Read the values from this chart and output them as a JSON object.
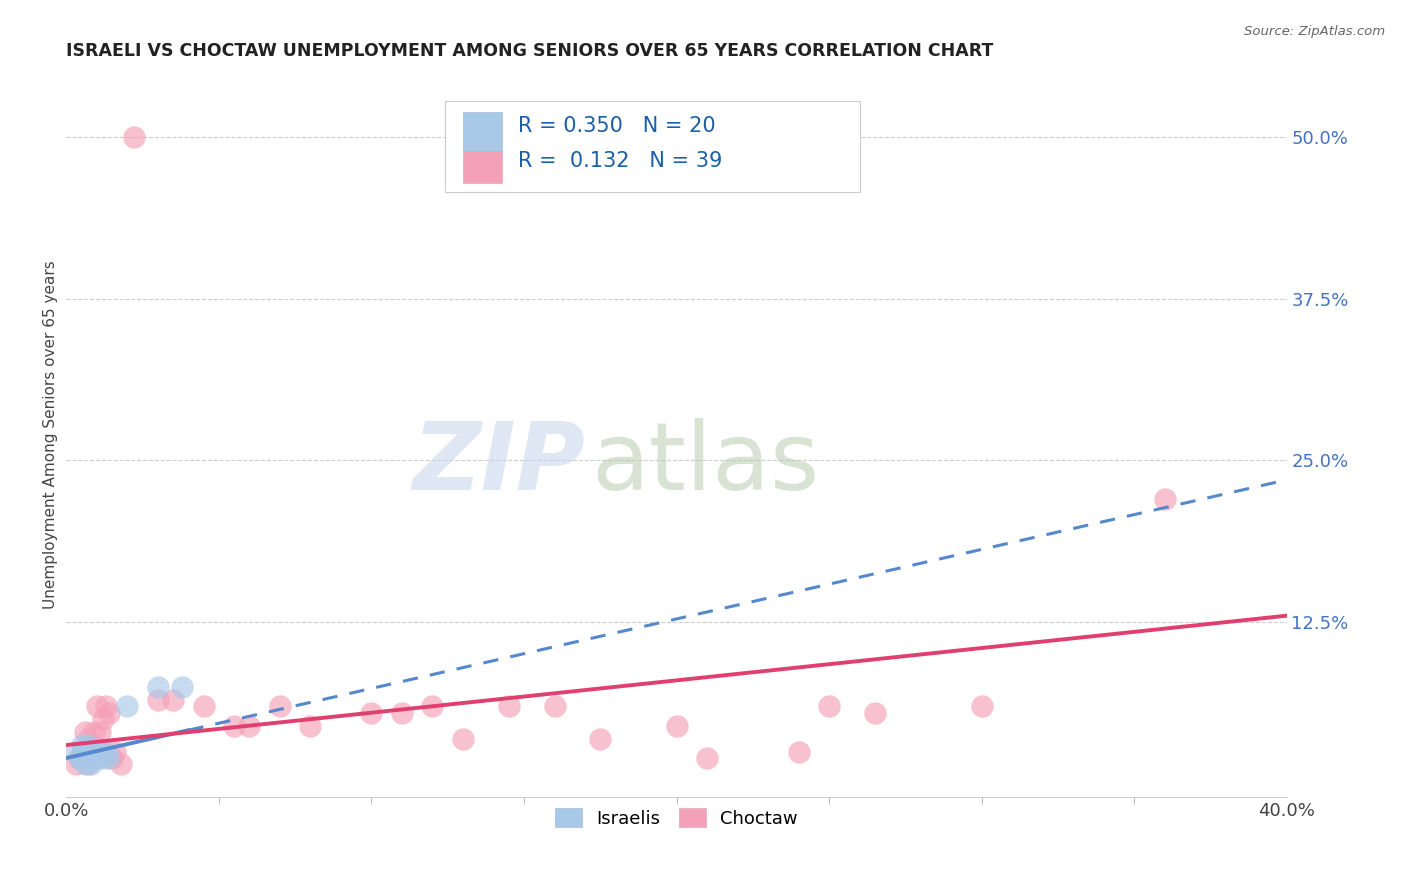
{
  "title": "ISRAELI VS CHOCTAW UNEMPLOYMENT AMONG SENIORS OVER 65 YEARS CORRELATION CHART",
  "source": "Source: ZipAtlas.com",
  "ylabel": "Unemployment Among Seniors over 65 years",
  "xlim": [
    0.0,
    0.4
  ],
  "ylim": [
    -0.01,
    0.55
  ],
  "yticks": [
    0.0,
    0.125,
    0.25,
    0.375,
    0.5
  ],
  "ytick_labels": [
    "",
    "12.5%",
    "25.0%",
    "37.5%",
    "50.0%"
  ],
  "xtick_minor_positions": [
    0.05,
    0.1,
    0.15,
    0.2,
    0.25,
    0.3,
    0.35
  ],
  "watermark_zip": "ZIP",
  "watermark_atlas": "atlas",
  "legend_r_israeli": "R = 0.350",
  "legend_n_israeli": "N = 20",
  "legend_r_choctaw": "R =  0.132",
  "legend_n_choctaw": "N = 39",
  "israeli_color": "#a8c8e8",
  "choctaw_color": "#f4a0b8",
  "trendline_israeli_color": "#5588cc",
  "trendline_choctaw_color": "#e04070",
  "israeli_points": [
    [
      0.003,
      0.025
    ],
    [
      0.004,
      0.02
    ],
    [
      0.005,
      0.03
    ],
    [
      0.005,
      0.02
    ],
    [
      0.006,
      0.025
    ],
    [
      0.006,
      0.015
    ],
    [
      0.007,
      0.03
    ],
    [
      0.007,
      0.02
    ],
    [
      0.008,
      0.025
    ],
    [
      0.008,
      0.015
    ],
    [
      0.009,
      0.02
    ],
    [
      0.009,
      0.025
    ],
    [
      0.01,
      0.02
    ],
    [
      0.011,
      0.025
    ],
    [
      0.012,
      0.02
    ],
    [
      0.013,
      0.025
    ],
    [
      0.014,
      0.02
    ],
    [
      0.02,
      0.06
    ],
    [
      0.03,
      0.075
    ],
    [
      0.038,
      0.075
    ]
  ],
  "choctaw_points": [
    [
      0.003,
      0.015
    ],
    [
      0.004,
      0.02
    ],
    [
      0.005,
      0.025
    ],
    [
      0.006,
      0.04
    ],
    [
      0.007,
      0.035
    ],
    [
      0.007,
      0.015
    ],
    [
      0.008,
      0.025
    ],
    [
      0.009,
      0.04
    ],
    [
      0.01,
      0.06
    ],
    [
      0.011,
      0.04
    ],
    [
      0.012,
      0.025
    ],
    [
      0.012,
      0.05
    ],
    [
      0.013,
      0.06
    ],
    [
      0.014,
      0.055
    ],
    [
      0.015,
      0.02
    ],
    [
      0.016,
      0.025
    ],
    [
      0.018,
      0.015
    ],
    [
      0.022,
      0.5
    ],
    [
      0.03,
      0.065
    ],
    [
      0.035,
      0.065
    ],
    [
      0.045,
      0.06
    ],
    [
      0.055,
      0.045
    ],
    [
      0.06,
      0.045
    ],
    [
      0.07,
      0.06
    ],
    [
      0.08,
      0.045
    ],
    [
      0.1,
      0.055
    ],
    [
      0.11,
      0.055
    ],
    [
      0.12,
      0.06
    ],
    [
      0.13,
      0.035
    ],
    [
      0.145,
      0.06
    ],
    [
      0.16,
      0.06
    ],
    [
      0.175,
      0.035
    ],
    [
      0.2,
      0.045
    ],
    [
      0.21,
      0.02
    ],
    [
      0.24,
      0.025
    ],
    [
      0.25,
      0.06
    ],
    [
      0.265,
      0.055
    ],
    [
      0.3,
      0.06
    ],
    [
      0.36,
      0.22
    ]
  ],
  "background_color": "#ffffff",
  "grid_color": "#cccccc"
}
